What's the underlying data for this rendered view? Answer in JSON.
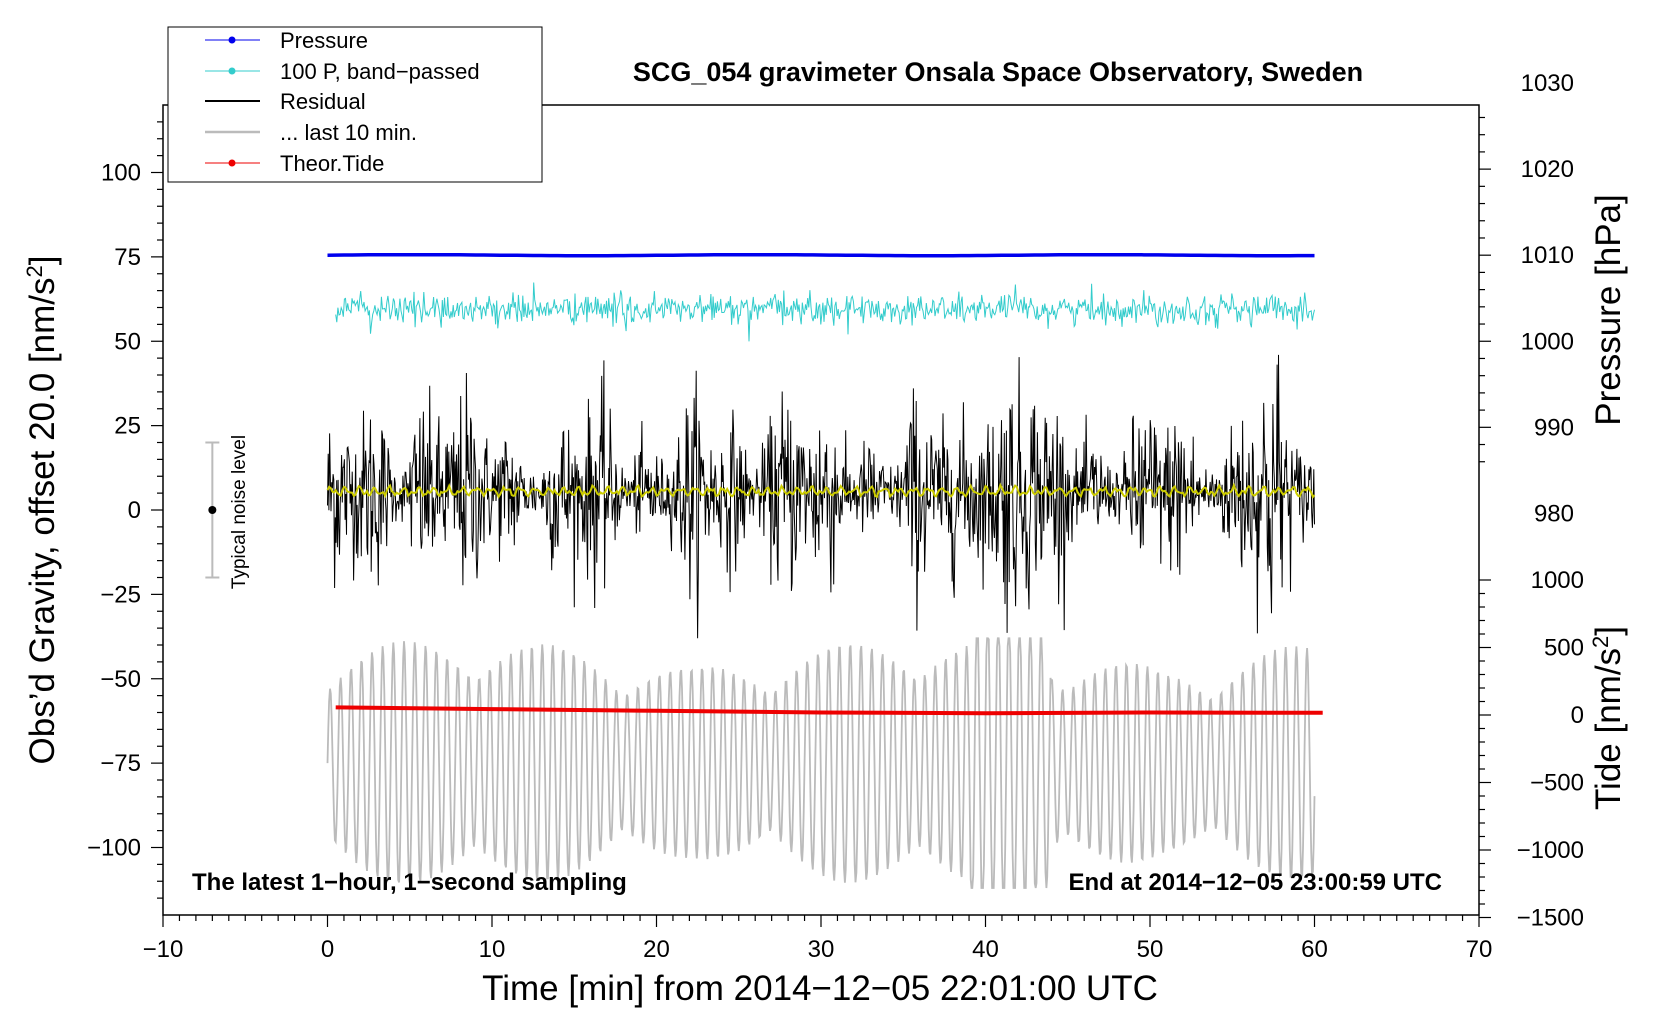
{
  "chart_data": {
    "type": "line",
    "title": "SCG_054 gravimeter Onsala Space Observatory, Sweden",
    "xlabel": "Time [min] from 2014−12−05 22:01:00 UTC",
    "ylabel_left_main": "Obs’d Gravity, offset 20.0 [nm/s",
    "ylabel_left_sup": "2",
    "ylabel_left_end": "]",
    "ylabel_right_pressure": "Pressure [hPa]",
    "ylabel_right_tide_main": "Tide [nm/s",
    "ylabel_right_tide_sup": "2",
    "ylabel_right_tide_end": "]",
    "xlim": [
      -10,
      70
    ],
    "ylim_left": [
      -120,
      120
    ],
    "ylim_right_pressure_ticks": [
      980,
      1030
    ],
    "ylim_right_tide_ticks": [
      -1500,
      1000
    ],
    "x_ticks": [
      -10,
      0,
      10,
      20,
      30,
      40,
      50,
      60,
      70
    ],
    "x_tick_labels": [
      "−10",
      "0",
      "10",
      "20",
      "30",
      "40",
      "50",
      "60",
      "70"
    ],
    "y_left_ticks": [
      100,
      75,
      50,
      25,
      0,
      -25,
      -50,
      -75,
      -100
    ],
    "y_left_tick_labels": [
      "100",
      "75",
      "50",
      "25",
      "0",
      "−25",
      "−50",
      "−75",
      "−100"
    ],
    "pressure_ticks": [
      1030,
      1020,
      1010,
      1000,
      990,
      980
    ],
    "pressure_tick_labels": [
      "1030",
      "1020",
      "1010",
      "1000",
      "990",
      "980"
    ],
    "tide_ticks": [
      1000,
      500,
      0,
      -500,
      -1000,
      -1500
    ],
    "tide_tick_labels": [
      "1000",
      "500",
      "0",
      "−500",
      "−1000",
      "−1500"
    ],
    "legend": [
      {
        "label": "Pressure",
        "color": "#0000ee",
        "style": "line-dot"
      },
      {
        "label": "100 P, band−passed",
        "color": "#33cccc",
        "style": "line-dot"
      },
      {
        "label": "Residual",
        "color": "#000000",
        "style": "line"
      },
      {
        "label": "... last 10 min.",
        "color": "#bbbbbb",
        "style": "line"
      },
      {
        "label": "Theor.Tide",
        "color": "#ee0000",
        "style": "line-dot"
      }
    ],
    "legend_placement": "top-left",
    "annotation_left": "The latest 1−hour, 1−second sampling",
    "annotation_right": "End at 2014−12−05 23:00:59 UTC",
    "noise_label": "Typical noise level",
    "noise_bar": {
      "x": -7,
      "center": 0,
      "half_range": 20
    },
    "series": [
      {
        "name": "Pressure",
        "color": "#0000ee",
        "x_range": [
          0,
          60
        ],
        "approx_level_hpa": 1010.0,
        "approx_level_left_units": 75.5
      },
      {
        "name": "100 P, band-passed",
        "color": "#33cccc",
        "x_range": [
          0.5,
          60
        ],
        "approx_center": 59.5,
        "approx_amplitude": 5
      },
      {
        "name": "Residual",
        "color": "#000000",
        "x_range": [
          0,
          60
        ],
        "approx_center": 5,
        "approx_amplitude": 40
      },
      {
        "name": "Residual (smoothed)",
        "color": "#cccc00",
        "x_range": [
          0,
          60
        ],
        "approx_center": 5.5,
        "approx_amplitude": 1.5
      },
      {
        "name": "... last 10 min.",
        "color": "#bbbbbb",
        "x_range": [
          0,
          60
        ],
        "approx_center": -75,
        "approx_amplitude": 35
      },
      {
        "name": "Theor.Tide",
        "color": "#ee0000",
        "x_range": [
          0.5,
          60.5
        ],
        "points": [
          [
            0.5,
            -58.5
          ],
          [
            10,
            -59
          ],
          [
            20,
            -59.5
          ],
          [
            30,
            -60
          ],
          [
            40,
            -60.2
          ],
          [
            50,
            -60
          ],
          [
            60.5,
            -60.1
          ]
        ]
      }
    ],
    "colors": {
      "pressure": "#0000ee",
      "bandpassed": "#33cccc",
      "residual": "#000000",
      "smoothed": "#cccc00",
      "last10": "#bbbbbb",
      "tide": "#ee0000",
      "noise_bar": "#bbbbbb"
    }
  }
}
